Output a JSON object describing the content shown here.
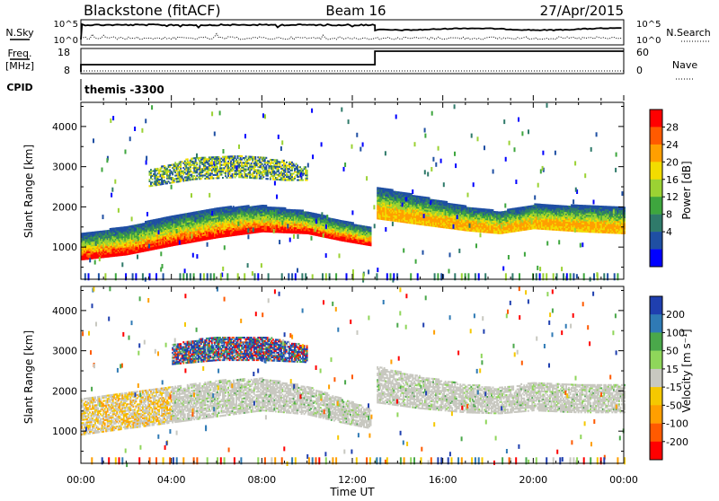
{
  "header": {
    "station": "Blackstone (fitACF)",
    "beam": "Beam 16",
    "date": "27/Apr/2015"
  },
  "params_panel": {
    "nsky_label": "N.Sky",
    "nsearch_label": "N.Search",
    "freq_label": "Freq.",
    "freq_unit": "[MHz]",
    "nave_label": "Nave",
    "cpid_label": "CPID",
    "cpid_value": "themis -3300",
    "nsky_ticks": [
      "10^5",
      "10^0"
    ],
    "nsearch_ticks": [
      "10^5",
      "10^0"
    ],
    "freq_ticks": [
      "18",
      "8"
    ],
    "nave_ticks": [
      "60",
      "0"
    ]
  },
  "colorbars": {
    "power": {
      "label": "Power [dB]",
      "ticks": [
        "28",
        "24",
        "20",
        "16",
        "12",
        "8",
        "4"
      ],
      "colors": [
        "#ff0000",
        "#ff5a00",
        "#ff9f00",
        "#f2dc00",
        "#9bd233",
        "#3ea63e",
        "#2f7a6a",
        "#1f4fa3",
        "#0000ff"
      ]
    },
    "velocity": {
      "label": "Velocity [m s⁻¹]",
      "ticks": [
        "200",
        "100",
        "50",
        "15",
        "-15",
        "-50",
        "-100",
        "-200"
      ],
      "colors": [
        "#1f3faf",
        "#2f7ab5",
        "#4aa84a",
        "#8fd65a",
        "#c8c8c0",
        "#f5c800",
        "#ff9f00",
        "#ff5a00",
        "#ff0000"
      ]
    }
  },
  "time_axis": {
    "label": "Time UT",
    "ticks": [
      "00:00",
      "04:00",
      "08:00",
      "12:00",
      "16:00",
      "20:00",
      "00:00"
    ]
  },
  "chart_data": [
    {
      "type": "heatmap",
      "name": "power",
      "ylabel": "Slant Range [km]",
      "ylim": [
        200,
        4600
      ],
      "yticks": [
        1000,
        2000,
        3000,
        4000
      ],
      "xlim_hours": [
        0,
        24
      ],
      "bands": [
        {
          "t": [
            0,
            2,
            4,
            6,
            8,
            10,
            11.5,
            12.8
          ],
          "center": [
            1000,
            1150,
            1400,
            1600,
            1700,
            1600,
            1400,
            1250
          ],
          "width": [
            650,
            700,
            750,
            750,
            650,
            550,
            500,
            450
          ],
          "intensity": 0.85
        },
        {
          "t": [
            13,
            15,
            17,
            18.5,
            20,
            22,
            24
          ],
          "center": [
            2100,
            1900,
            1700,
            1600,
            1750,
            1700,
            1650
          ],
          "width": [
            800,
            700,
            600,
            550,
            600,
            650,
            650
          ],
          "intensity": 0.75
        },
        {
          "t": [
            3,
            5,
            7,
            9,
            10
          ],
          "center": [
            2700,
            2950,
            3000,
            2900,
            2800
          ],
          "width": [
            400,
            550,
            550,
            500,
            300
          ],
          "intensity": 0.45
        }
      ],
      "gap_hours": [
        12.9,
        13.05
      ]
    },
    {
      "type": "heatmap",
      "name": "velocity",
      "ylabel": "Slant Range [km]",
      "ylim": [
        200,
        4600
      ],
      "yticks": [
        1000,
        2000,
        3000,
        4000
      ],
      "xlim_hours": [
        0,
        24
      ],
      "bands": [
        {
          "t": [
            0,
            2,
            4,
            6,
            8,
            10,
            11.5,
            12.8
          ],
          "center": [
            1350,
            1500,
            1650,
            1800,
            1900,
            1750,
            1500,
            1300
          ],
          "width": [
            900,
            900,
            900,
            900,
            800,
            700,
            600,
            500
          ],
          "intensity": 0.5
        },
        {
          "t": [
            13,
            15,
            17,
            18.5,
            20,
            22,
            24
          ],
          "center": [
            2150,
            1950,
            1800,
            1750,
            1850,
            1800,
            1800
          ],
          "width": [
            900,
            800,
            700,
            650,
            700,
            700,
            700
          ],
          "intensity": 0.5
        },
        {
          "t": [
            4,
            6,
            8,
            10
          ],
          "center": [
            2900,
            3050,
            3050,
            2900
          ],
          "width": [
            500,
            600,
            600,
            400
          ],
          "intensity": 0.6
        }
      ],
      "gap_hours": [
        12.9,
        13.05
      ]
    }
  ]
}
